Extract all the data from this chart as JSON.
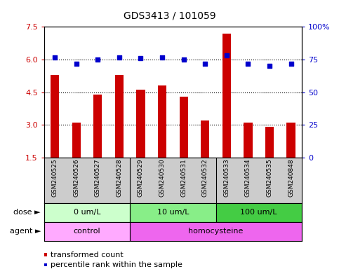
{
  "title": "GDS3413 / 101059",
  "samples": [
    "GSM240525",
    "GSM240526",
    "GSM240527",
    "GSM240528",
    "GSM240529",
    "GSM240530",
    "GSM240531",
    "GSM240532",
    "GSM240533",
    "GSM240534",
    "GSM240535",
    "GSM240848"
  ],
  "bar_values": [
    5.3,
    3.1,
    4.4,
    5.3,
    4.6,
    4.8,
    4.3,
    3.2,
    7.2,
    3.1,
    2.9,
    3.1
  ],
  "dot_values": [
    6.1,
    5.8,
    6.0,
    6.1,
    6.05,
    6.1,
    6.0,
    5.8,
    6.2,
    5.8,
    5.7,
    5.8
  ],
  "bar_color": "#cc0000",
  "dot_color": "#0000cc",
  "ylim_left": [
    1.5,
    7.5
  ],
  "ylim_right": [
    0,
    100
  ],
  "yticks_left": [
    1.5,
    3.0,
    4.5,
    6.0,
    7.5
  ],
  "yticks_right": [
    0,
    25,
    50,
    75,
    100
  ],
  "hlines": [
    3.0,
    4.5,
    6.0
  ],
  "dose_groups": [
    {
      "label": "0 um/L",
      "start": 0,
      "end": 4,
      "color": "#ccffcc"
    },
    {
      "label": "10 um/L",
      "start": 4,
      "end": 8,
      "color": "#88ee88"
    },
    {
      "label": "100 um/L",
      "start": 8,
      "end": 12,
      "color": "#44cc44"
    }
  ],
  "agent_groups": [
    {
      "label": "control",
      "start": 0,
      "end": 4,
      "color": "#ffaaff"
    },
    {
      "label": "homocysteine",
      "start": 4,
      "end": 12,
      "color": "#ee66ee"
    }
  ],
  "dose_label": "dose",
  "agent_label": "agent",
  "legend_bar": "transformed count",
  "legend_dot": "percentile rank within the sample",
  "sample_bg": "#cccccc",
  "bar_width": 0.4,
  "dot_size": 18,
  "title_fontsize": 10,
  "tick_fontsize": 8,
  "label_fontsize": 8,
  "legend_fontsize": 8
}
